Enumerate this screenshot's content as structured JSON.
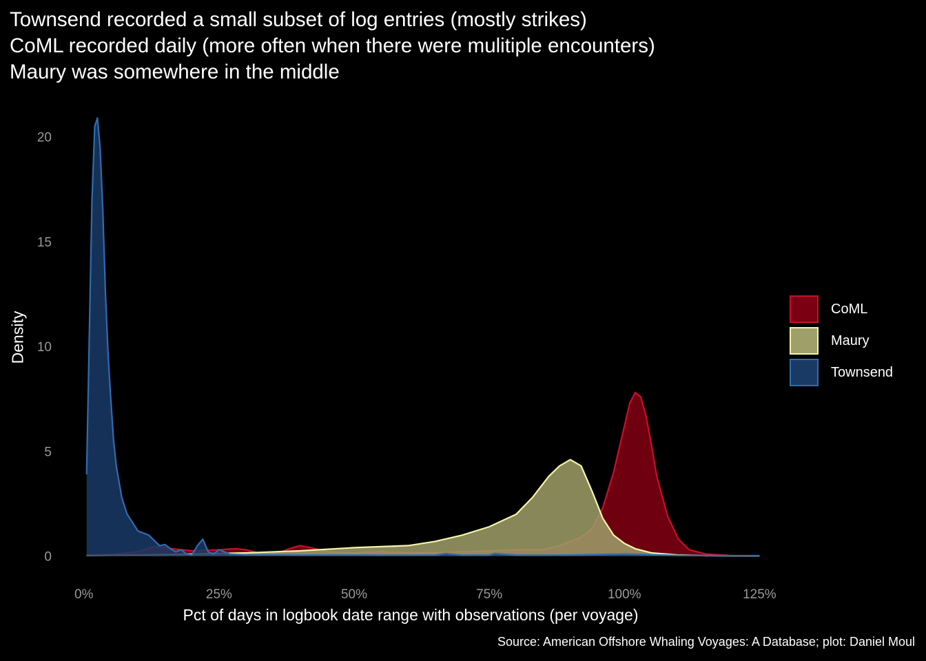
{
  "chart_data": {
    "type": "area",
    "title_lines": [
      "Townsend recorded a small subset of log entries (mostly strikes)",
      "CoML recorded daily (more often when there were mulitiple encounters)",
      "Maury was somewhere in the middle"
    ],
    "xlabel": "Pct of days in logbook date range with observations (per voyage)",
    "ylabel": "Density",
    "caption": "Source: American Offshore Whaling Voyages: A Database; plot: Daniel Moul",
    "xlim": [
      -0.015,
      1.275
    ],
    "ylim": [
      -0.9,
      21.6
    ],
    "x_ticks": [
      0,
      0.25,
      0.5,
      0.75,
      1.0,
      1.25
    ],
    "x_tick_labels": [
      "0%",
      "25%",
      "50%",
      "75%",
      "100%",
      "125%"
    ],
    "y_ticks": [
      0,
      5,
      10,
      15,
      20
    ],
    "y_tick_labels": [
      "0",
      "5",
      "10",
      "15",
      "20"
    ],
    "grid": false,
    "legend_position": "right",
    "series": [
      {
        "name": "Townsend",
        "fill": "#1a3a66",
        "stroke": "#2f6db0",
        "x": [
          0.005,
          0.01,
          0.015,
          0.02,
          0.025,
          0.03,
          0.035,
          0.04,
          0.045,
          0.05,
          0.055,
          0.06,
          0.07,
          0.08,
          0.09,
          0.1,
          0.12,
          0.14,
          0.15,
          0.16,
          0.17,
          0.18,
          0.19,
          0.2,
          0.21,
          0.22,
          0.23,
          0.24,
          0.25,
          0.26,
          0.27,
          0.3,
          0.35,
          0.4,
          0.45,
          0.5,
          0.55,
          0.6,
          0.65,
          0.67,
          0.7,
          0.75,
          0.76,
          0.8,
          0.85,
          0.9,
          1.0,
          1.1,
          1.2,
          1.25
        ],
        "y": [
          3.9,
          10.5,
          17.0,
          20.5,
          20.9,
          19.5,
          16.5,
          12.5,
          9.5,
          7.4,
          5.5,
          4.3,
          2.8,
          2.0,
          1.6,
          1.2,
          1.0,
          0.5,
          0.55,
          0.35,
          0.2,
          0.3,
          0.1,
          0.06,
          0.5,
          0.8,
          0.2,
          0.1,
          0.3,
          0.2,
          0.1,
          0.06,
          0.06,
          0.05,
          0.05,
          0.05,
          0.04,
          0.04,
          0.05,
          0.12,
          0.04,
          0.05,
          0.12,
          0.04,
          0.04,
          0.05,
          0.1,
          0.03,
          0.02,
          0.02
        ]
      },
      {
        "name": "Maury",
        "fill": "#9f9f6a",
        "stroke": "#f5f5a8",
        "x": [
          0.005,
          0.1,
          0.2,
          0.3,
          0.4,
          0.5,
          0.55,
          0.6,
          0.65,
          0.7,
          0.75,
          0.8,
          0.83,
          0.86,
          0.88,
          0.9,
          0.92,
          0.94,
          0.96,
          0.98,
          1.0,
          1.02,
          1.05,
          1.1,
          1.15,
          1.2,
          1.25
        ],
        "y": [
          0.03,
          0.05,
          0.1,
          0.15,
          0.25,
          0.4,
          0.45,
          0.5,
          0.7,
          1.0,
          1.4,
          2.0,
          2.8,
          3.8,
          4.3,
          4.6,
          4.3,
          3.1,
          1.8,
          1.0,
          0.6,
          0.35,
          0.15,
          0.05,
          0.02,
          0.01,
          0.01
        ]
      },
      {
        "name": "CoML",
        "fill": "#7a0012",
        "stroke": "#c8102e",
        "x": [
          0.005,
          0.05,
          0.1,
          0.13,
          0.15,
          0.18,
          0.2,
          0.25,
          0.28,
          0.3,
          0.33,
          0.36,
          0.38,
          0.4,
          0.42,
          0.45,
          0.5,
          0.55,
          0.6,
          0.65,
          0.7,
          0.75,
          0.8,
          0.85,
          0.88,
          0.9,
          0.92,
          0.94,
          0.96,
          0.98,
          1.0,
          1.01,
          1.02,
          1.03,
          1.04,
          1.05,
          1.06,
          1.08,
          1.1,
          1.12,
          1.15,
          1.2,
          1.25
        ],
        "y": [
          0.05,
          0.08,
          0.2,
          0.45,
          0.4,
          0.3,
          0.25,
          0.3,
          0.35,
          0.3,
          0.1,
          0.15,
          0.35,
          0.5,
          0.4,
          0.2,
          0.15,
          0.2,
          0.15,
          0.15,
          0.2,
          0.25,
          0.3,
          0.3,
          0.5,
          0.7,
          0.9,
          1.3,
          2.3,
          4.0,
          6.2,
          7.3,
          7.8,
          7.6,
          6.7,
          5.3,
          3.8,
          1.9,
          0.8,
          0.3,
          0.1,
          0.02,
          0.01
        ]
      }
    ]
  }
}
